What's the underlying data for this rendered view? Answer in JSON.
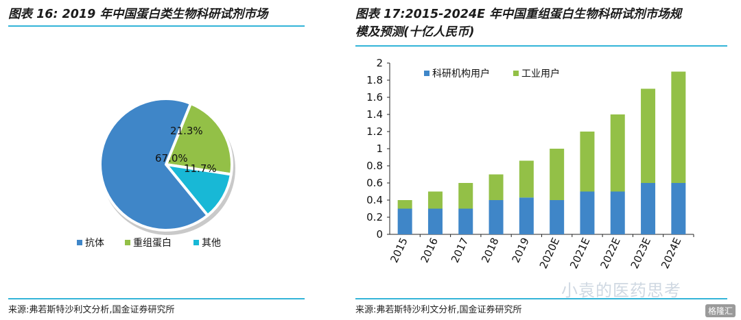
{
  "left": {
    "title": "图表 16:  2019 年中国蛋白类生物科研试剂市场",
    "source": "来源:弗若斯特沙利文分析,国金证券研究所"
  },
  "right": {
    "title_line1": "图表 17:2015-2024E 年中国重组蛋白生物科研试剂市场规",
    "title_line2": "模及预测(十亿人民币)",
    "source": "来源:弗若斯特沙利文分析,国金证券研究所"
  },
  "watermark": {
    "text": "小袁的医药思考",
    "logo": "格隆汇"
  },
  "colors": {
    "accent_rule": "#32b4d8",
    "blue": "#3f86c8",
    "green": "#93c047",
    "cyan": "#18b8d6"
  },
  "chart_data": [
    {
      "type": "pie",
      "title": "2019 年中国蛋白类生物科研试剂市场",
      "slices": [
        {
          "name": "抗体",
          "value": 67.0,
          "label": "67.0%",
          "color": "#3f86c8"
        },
        {
          "name": "重组蛋白",
          "value": 21.3,
          "label": "21.3%",
          "color": "#93c047"
        },
        {
          "name": "其他",
          "value": 11.7,
          "label": "11.7%",
          "color": "#18b8d6"
        }
      ],
      "legend_position": "bottom"
    },
    {
      "type": "bar",
      "stacked": true,
      "title": "2015-2024E 年中国重组蛋白生物科研试剂市场规模及预测(十亿人民币)",
      "categories": [
        "2015",
        "2016",
        "2017",
        "2018",
        "2019",
        "2020E",
        "2021E",
        "2022E",
        "2023E",
        "2024E"
      ],
      "series": [
        {
          "name": "科研机构用户",
          "color": "#3f86c8",
          "values": [
            0.3,
            0.3,
            0.3,
            0.4,
            0.43,
            0.4,
            0.5,
            0.5,
            0.6,
            0.6
          ]
        },
        {
          "name": "工业用户",
          "color": "#93c047",
          "values": [
            0.1,
            0.2,
            0.3,
            0.3,
            0.43,
            0.6,
            0.7,
            0.9,
            1.1,
            1.3
          ]
        }
      ],
      "yticks": [
        "0",
        "0.2",
        "0.4",
        "0.6",
        "0.8",
        "1",
        "1.2",
        "1.4",
        "1.6",
        "1.8",
        "2"
      ],
      "ylim": [
        0,
        2
      ],
      "legend_position": "top-left",
      "grid": false
    }
  ]
}
